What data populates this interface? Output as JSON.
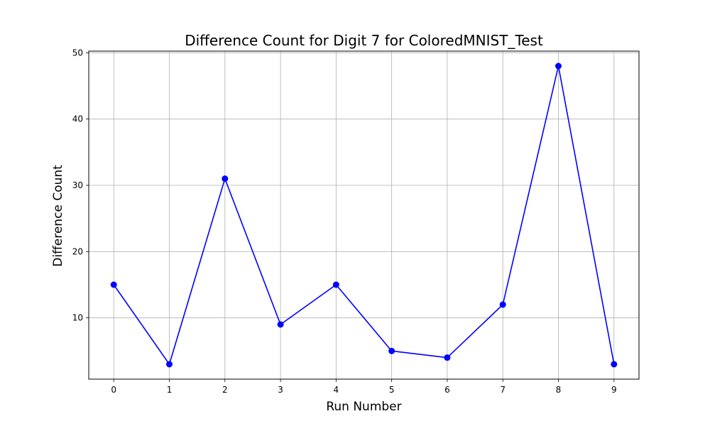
{
  "chart_data": {
    "type": "line",
    "title": "Difference Count for Digit 7 for ColoredMNIST_Test",
    "xlabel": "Run Number",
    "ylabel": "Difference Count",
    "x": [
      0,
      1,
      2,
      3,
      4,
      5,
      6,
      7,
      8,
      9
    ],
    "series": [
      {
        "values": [
          15,
          3,
          31,
          9,
          15,
          5,
          4,
          12,
          48,
          3
        ],
        "color": "#0000ff",
        "marker": "circle"
      }
    ],
    "xlim": [
      -0.45,
      9.45
    ],
    "ylim": [
      0.75,
      50.25
    ],
    "xticks": [
      0,
      1,
      2,
      3,
      4,
      5,
      6,
      7,
      8,
      9
    ],
    "yticks": [
      10,
      20,
      30,
      40,
      50
    ],
    "grid": true,
    "legend": "none"
  }
}
